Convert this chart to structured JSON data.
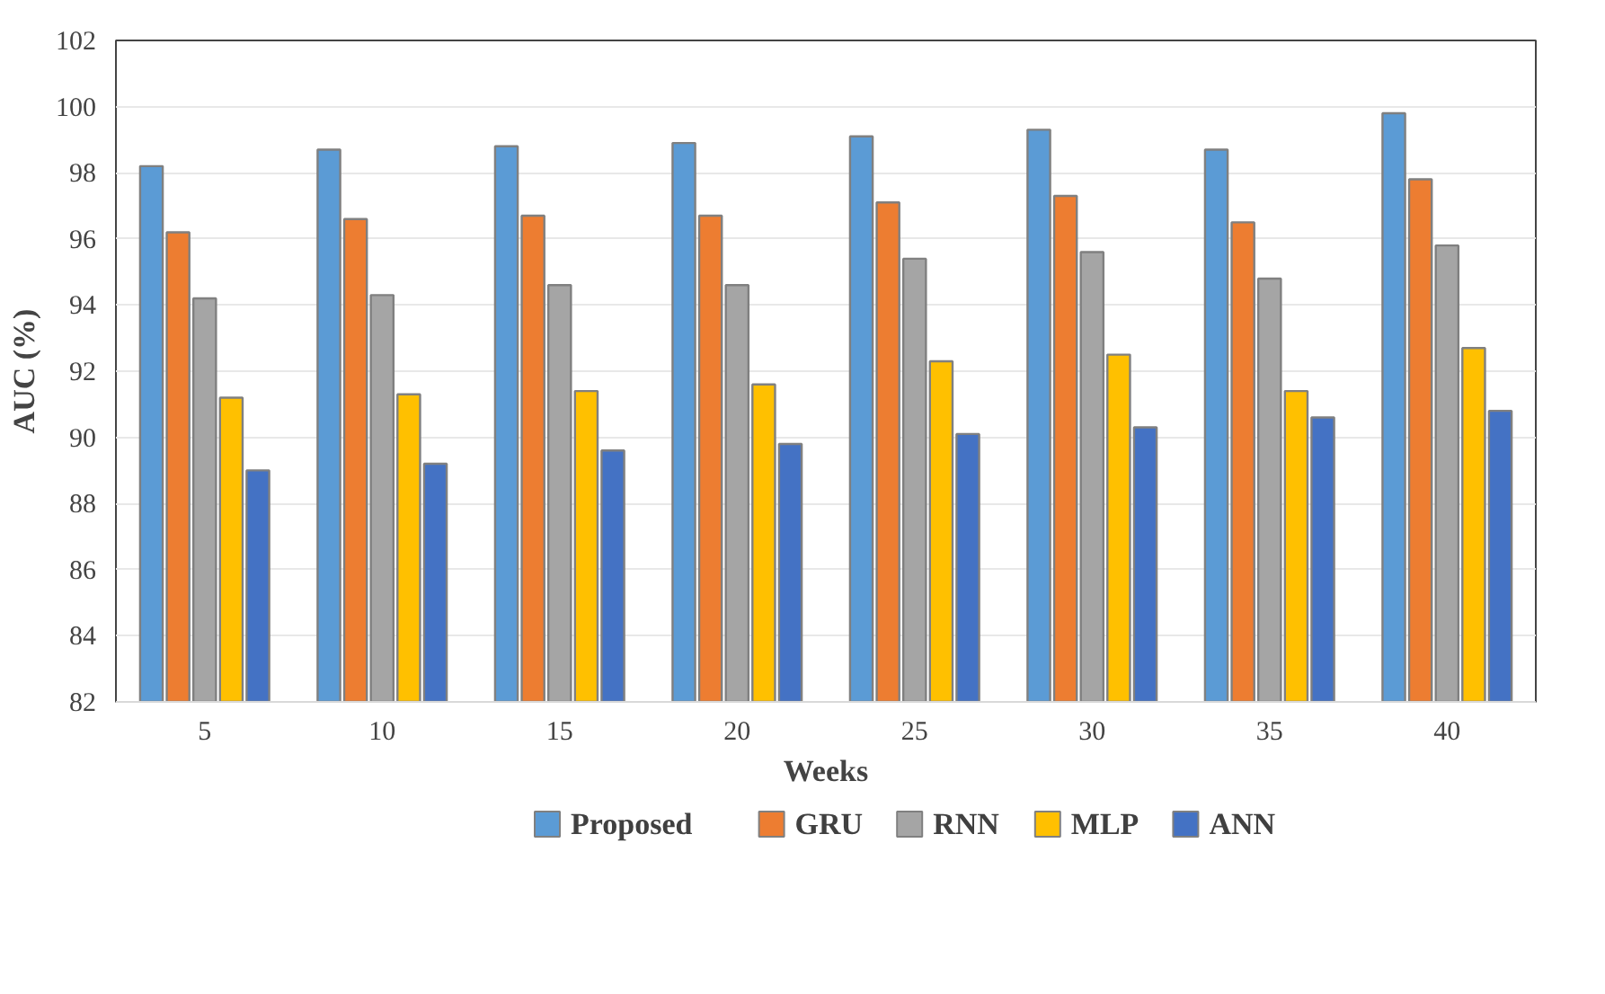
{
  "chart_data": {
    "type": "bar",
    "xlabel": "Weeks",
    "ylabel": "AUC (%)",
    "categories": [
      "5",
      "10",
      "15",
      "20",
      "25",
      "30",
      "35",
      "40"
    ],
    "series": [
      {
        "name": "Proposed",
        "color": "#5b9bd5",
        "values": [
          98.2,
          98.7,
          98.8,
          98.9,
          99.1,
          99.3,
          98.7,
          99.8
        ]
      },
      {
        "name": "GRU",
        "color": "#ed7d31",
        "values": [
          96.2,
          96.6,
          96.7,
          96.7,
          97.1,
          97.3,
          96.5,
          97.8
        ]
      },
      {
        "name": "RNN",
        "color": "#a5a5a5",
        "values": [
          94.2,
          94.3,
          94.6,
          94.6,
          95.4,
          95.6,
          94.8,
          95.8
        ]
      },
      {
        "name": "MLP",
        "color": "#ffc000",
        "values": [
          91.2,
          91.3,
          91.4,
          91.6,
          92.3,
          92.5,
          91.4,
          92.7
        ]
      },
      {
        "name": "ANN",
        "color": "#4472c4",
        "values": [
          89.0,
          89.2,
          89.6,
          89.8,
          90.1,
          90.3,
          90.6,
          90.8
        ]
      }
    ],
    "ylim": [
      82,
      102
    ],
    "yticks": [
      82,
      84,
      86,
      88,
      90,
      92,
      94,
      96,
      98,
      100,
      102
    ],
    "grid": "y",
    "legend": "bottom"
  }
}
